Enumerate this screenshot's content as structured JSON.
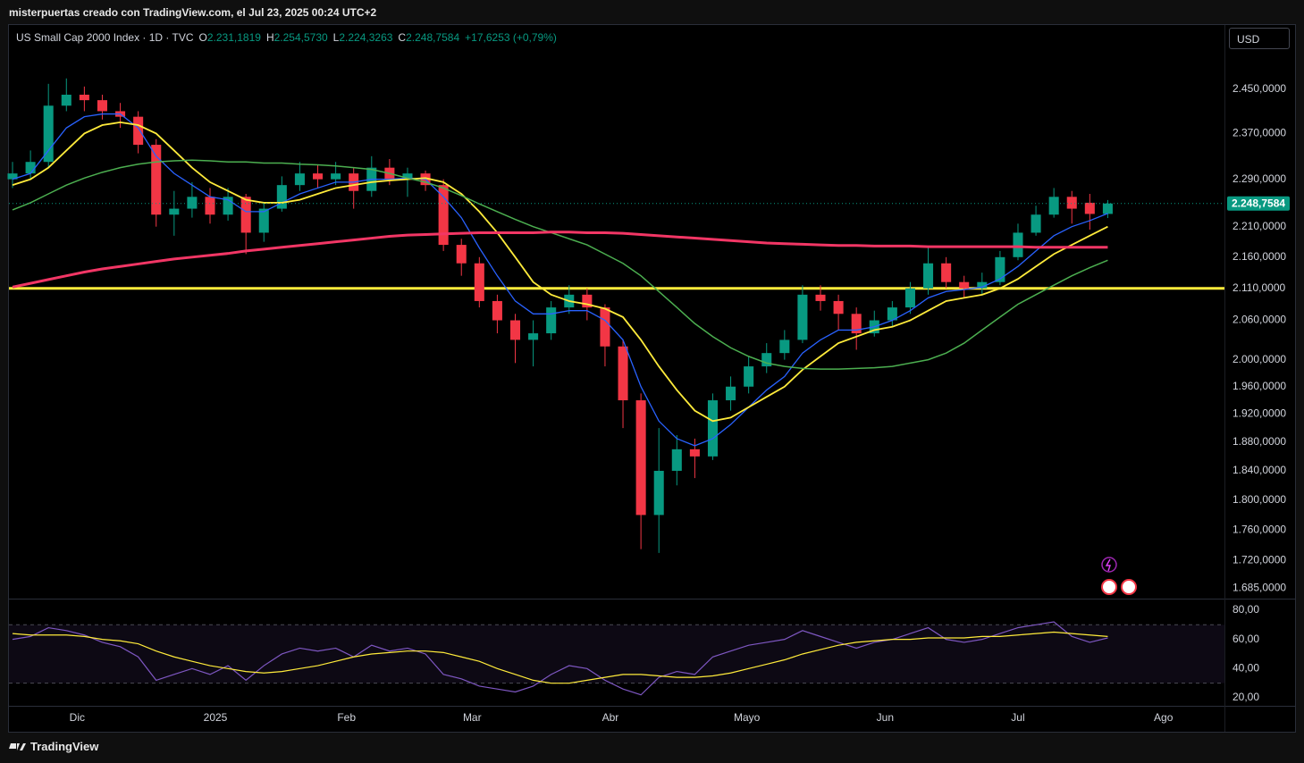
{
  "page": {
    "credit": "misterpuertas creado con TradingView.com, el Jul 23, 2025 00:24 UTC+2",
    "brand": "TradingView"
  },
  "chart_data": [
    {
      "type": "candlestick",
      "title": "US Small Cap 2000 Index · 1D · TVC",
      "header": [
        {
          "key": "O",
          "label": "2.231,1819"
        },
        {
          "key": "H",
          "label": "2.254,5730"
        },
        {
          "key": "L",
          "label": "2.224,3263"
        },
        {
          "key": "C",
          "label": "2.248,7584"
        }
      ],
      "change_label": "+17,6253 (+0,79%)",
      "currency": "USD",
      "last_price": {
        "value": 2248.7584,
        "label": "2.248,7584"
      },
      "up_color": "#089981",
      "down_color": "#f23645",
      "open": [
        2290,
        2300,
        2320,
        2420,
        2440,
        2430,
        2410,
        2400,
        2350,
        2230,
        2240,
        2260,
        2230,
        2260,
        2200,
        2240,
        2280,
        2300,
        2290,
        2300,
        2270,
        2310,
        2290,
        2300,
        2280,
        2180,
        2150,
        2090,
        2060,
        2030,
        2040,
        2080,
        2100,
        2080,
        2020,
        1940,
        1780,
        1840,
        1870,
        1860,
        1940,
        1960,
        1990,
        2010,
        2030,
        2100,
        2090,
        2070,
        2040,
        2060,
        2080,
        2110,
        2150,
        2120,
        2110,
        2120,
        2160,
        2200,
        2230,
        2260,
        2250,
        2231.1819
      ],
      "high": [
        2320,
        2340,
        2460,
        2470,
        2455,
        2440,
        2425,
        2410,
        2360,
        2270,
        2285,
        2275,
        2275,
        2265,
        2250,
        2295,
        2320,
        2315,
        2320,
        2310,
        2330,
        2325,
        2310,
        2305,
        2290,
        2190,
        2160,
        2100,
        2070,
        2060,
        2090,
        2115,
        2110,
        2085,
        2030,
        1950,
        1900,
        1890,
        1885,
        1950,
        1975,
        2005,
        2025,
        2045,
        2115,
        2115,
        2100,
        2080,
        2075,
        2090,
        2120,
        2175,
        2160,
        2130,
        2135,
        2170,
        2215,
        2245,
        2275,
        2270,
        2265,
        2254.573
      ],
      "low": [
        2275,
        2290,
        2310,
        2410,
        2410,
        2395,
        2380,
        2335,
        2210,
        2195,
        2225,
        2215,
        2220,
        2165,
        2185,
        2235,
        2270,
        2275,
        2280,
        2240,
        2260,
        2280,
        2260,
        2270,
        2170,
        2130,
        2080,
        2040,
        1995,
        1990,
        2030,
        2070,
        2060,
        1990,
        1900,
        1735,
        1730,
        1820,
        1830,
        1855,
        1925,
        1950,
        1980,
        2000,
        2025,
        2075,
        2045,
        2015,
        2035,
        2050,
        2070,
        2100,
        2110,
        2095,
        2100,
        2115,
        2155,
        2195,
        2225,
        2215,
        2205,
        2224.3263
      ],
      "close": [
        2300,
        2320,
        2420,
        2440,
        2430,
        2410,
        2400,
        2350,
        2230,
        2240,
        2260,
        2230,
        2260,
        2200,
        2240,
        2280,
        2300,
        2290,
        2300,
        2270,
        2310,
        2290,
        2300,
        2280,
        2180,
        2150,
        2090,
        2060,
        2030,
        2040,
        2080,
        2100,
        2080,
        2020,
        1940,
        1780,
        1840,
        1870,
        1860,
        1940,
        1960,
        1990,
        2010,
        2030,
        2100,
        2090,
        2070,
        2040,
        2060,
        2080,
        2110,
        2150,
        2120,
        2110,
        2120,
        2160,
        2200,
        2230,
        2260,
        2240,
        2231.1819,
        2248.7584
      ],
      "series": [
        {
          "color": "#2962ff",
          "width": 1.3,
          "values": [
            2290,
            2300,
            2340,
            2380,
            2400,
            2405,
            2405,
            2380,
            2330,
            2300,
            2280,
            2260,
            2255,
            2235,
            2235,
            2250,
            2265,
            2275,
            2285,
            2285,
            2290,
            2290,
            2292,
            2290,
            2260,
            2225,
            2175,
            2130,
            2090,
            2070,
            2070,
            2075,
            2075,
            2060,
            2030,
            1960,
            1910,
            1885,
            1875,
            1885,
            1905,
            1930,
            1955,
            1975,
            2010,
            2030,
            2045,
            2045,
            2050,
            2060,
            2075,
            2095,
            2105,
            2108,
            2112,
            2125,
            2145,
            2170,
            2195,
            2210,
            2220,
            2232
          ]
        },
        {
          "color": "#ffeb3b",
          "width": 1.8,
          "values": [
            2280,
            2290,
            2310,
            2340,
            2370,
            2385,
            2390,
            2385,
            2370,
            2340,
            2310,
            2285,
            2270,
            2255,
            2250,
            2250,
            2255,
            2265,
            2275,
            2280,
            2285,
            2288,
            2290,
            2292,
            2285,
            2265,
            2235,
            2200,
            2160,
            2120,
            2100,
            2090,
            2085,
            2078,
            2065,
            2030,
            1990,
            1955,
            1925,
            1910,
            1915,
            1930,
            1945,
            1960,
            1985,
            2005,
            2025,
            2035,
            2045,
            2050,
            2060,
            2075,
            2090,
            2095,
            2100,
            2110,
            2125,
            2145,
            2165,
            2180,
            2195,
            2210
          ]
        },
        {
          "color": "#4caf50",
          "width": 1.5,
          "values": [
            2238,
            2250,
            2265,
            2280,
            2292,
            2302,
            2310,
            2316,
            2320,
            2322,
            2323,
            2322,
            2320,
            2320,
            2318,
            2318,
            2316,
            2315,
            2313,
            2310,
            2307,
            2300,
            2292,
            2285,
            2275,
            2262,
            2248,
            2235,
            2222,
            2210,
            2200,
            2190,
            2180,
            2165,
            2150,
            2130,
            2105,
            2080,
            2055,
            2035,
            2018,
            2005,
            1995,
            1990,
            1987,
            1986,
            1986,
            1987,
            1988,
            1990,
            1995,
            2000,
            2010,
            2025,
            2045,
            2065,
            2085,
            2100,
            2115,
            2130,
            2143,
            2155
          ]
        },
        {
          "color": "#f23665",
          "width": 3,
          "values": [
            2112,
            2118,
            2124,
            2130,
            2136,
            2141,
            2145,
            2149,
            2153,
            2157,
            2160,
            2163,
            2166,
            2170,
            2173,
            2176,
            2179,
            2182,
            2185,
            2188,
            2191,
            2194,
            2196,
            2197,
            2198,
            2199,
            2200,
            2200,
            2200,
            2200,
            2201,
            2201,
            2200,
            2200,
            2199,
            2197,
            2195,
            2193,
            2191,
            2189,
            2187,
            2185,
            2183,
            2182,
            2181,
            2180,
            2179,
            2179,
            2178,
            2178,
            2178,
            2177,
            2177,
            2177,
            2177,
            2177,
            2177,
            2176,
            2176,
            2176,
            2176,
            2176
          ]
        }
      ],
      "hline": {
        "value": 2110,
        "color": "#ffeb3b"
      },
      "log_scale": true,
      "ylim": [
        1674,
        2571
      ],
      "yticks": [
        {
          "value": 2450,
          "label": "2.450,0000"
        },
        {
          "value": 2370,
          "label": "2.370,0000"
        },
        {
          "value": 2290,
          "label": "2.290,0000"
        },
        {
          "value": 2210,
          "label": "2.210,0000"
        },
        {
          "value": 2160,
          "label": "2.160,0000"
        },
        {
          "value": 2110,
          "label": "2.110,0000"
        },
        {
          "value": 2060,
          "label": "2.060,0000"
        },
        {
          "value": 2000,
          "label": "2.000,0000"
        },
        {
          "value": 1960,
          "label": "1.960,0000"
        },
        {
          "value": 1920,
          "label": "1.920,0000"
        },
        {
          "value": 1880,
          "label": "1.880,0000"
        },
        {
          "value": 1840,
          "label": "1.840,0000"
        },
        {
          "value": 1800,
          "label": "1.800,0000"
        },
        {
          "value": 1760,
          "label": "1.760,0000"
        },
        {
          "value": 1720,
          "label": "1.720,0000"
        },
        {
          "value": 1685,
          "label": "1.685,0000"
        }
      ],
      "xlim": [
        -0.2,
        67.5
      ],
      "xticks": [
        {
          "value": 3.6,
          "label": "Dic"
        },
        {
          "value": 11.3,
          "label": "2025"
        },
        {
          "value": 18.6,
          "label": "Feb"
        },
        {
          "value": 25.6,
          "label": "Mar"
        },
        {
          "value": 33.3,
          "label": "Abr"
        },
        {
          "value": 40.9,
          "label": "Mayo"
        },
        {
          "value": 48.6,
          "label": "Jun"
        },
        {
          "value": 56,
          "label": "Jul"
        },
        {
          "value": 64.1,
          "label": "Ago"
        }
      ]
    },
    {
      "type": "line",
      "series": [
        {
          "color": "#7e57c2",
          "values": [
            60,
            62,
            68,
            66,
            63,
            58,
            55,
            48,
            32,
            36,
            40,
            36,
            42,
            32,
            42,
            50,
            54,
            52,
            54,
            48,
            56,
            52,
            54,
            50,
            36,
            33,
            28,
            26,
            24,
            28,
            36,
            42,
            40,
            32,
            26,
            22,
            34,
            38,
            36,
            48,
            52,
            56,
            58,
            60,
            66,
            62,
            58,
            54,
            58,
            60,
            64,
            68,
            60,
            58,
            60,
            64,
            68,
            70,
            72,
            62,
            58,
            61
          ]
        },
        {
          "color": "#ffeb3b",
          "values": [
            64,
            63,
            63,
            63,
            62,
            60,
            59,
            57,
            52,
            48,
            45,
            42,
            40,
            38,
            37,
            38,
            40,
            42,
            45,
            48,
            50,
            51,
            52,
            52,
            51,
            48,
            45,
            40,
            36,
            32,
            30,
            30,
            32,
            34,
            36,
            36,
            35,
            34,
            34,
            35,
            37,
            40,
            43,
            46,
            50,
            53,
            56,
            58,
            59,
            60,
            60,
            61,
            61,
            61,
            62,
            62,
            63,
            64,
            65,
            64,
            63,
            62
          ]
        }
      ],
      "bands": [
        70,
        30
      ],
      "ylim": [
        14.5,
        86.7
      ],
      "yticks": [
        {
          "value": 80,
          "label": "80,00"
        },
        {
          "value": 60,
          "label": "60,00"
        },
        {
          "value": 40,
          "label": "40,00"
        },
        {
          "value": 20,
          "label": "20,00"
        }
      ]
    }
  ]
}
